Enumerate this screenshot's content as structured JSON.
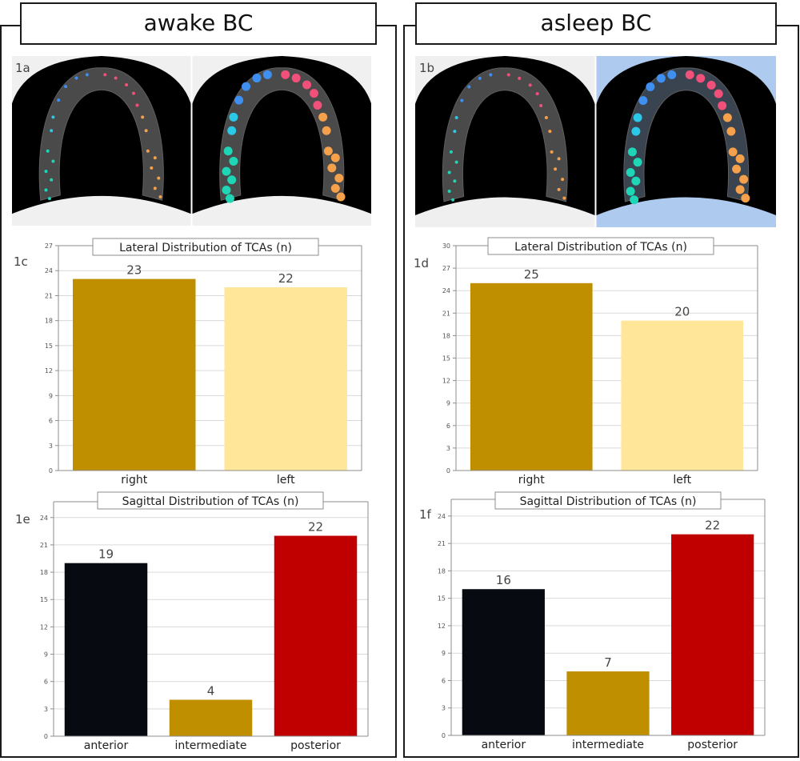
{
  "panels": [
    {
      "header": "awake BC",
      "photo_label": "1a",
      "photo_bg_right": "#f0f0f0",
      "photo_overlay_left": "#f0f0f0"
    },
    {
      "header": "asleep BC",
      "photo_label": "1b",
      "photo_bg_right": "#aecbef",
      "photo_overlay_left": "#efefef"
    }
  ],
  "colors": {
    "right_bar": "#bf8f00",
    "left_bar": "#ffe699",
    "anterior_bar": "#070a10",
    "intermediate_bar": "#bf8f00",
    "posterior_bar": "#c00000",
    "grid": "#d9d9d9",
    "axis": "#8c8c8c",
    "tcas": {
      "blue": "#3f8ff0",
      "pink": "#f0507a",
      "orange": "#f5a04a",
      "teal": "#1ed6b6",
      "cyan": "#2cc8e8"
    }
  },
  "chart_data": [
    {
      "id": "1c",
      "panel_label": "1c",
      "type": "bar",
      "title": "Lateral Distribution of TCAs (n)",
      "categories": [
        "right",
        "left"
      ],
      "values": [
        23,
        22
      ],
      "data_labels": [
        "23",
        "22"
      ],
      "bar_colors": [
        "#bf8f00",
        "#ffe699"
      ],
      "ylim": [
        0,
        27
      ],
      "yticks": [
        "0",
        "3",
        "6",
        "9",
        "12",
        "15",
        "18",
        "21",
        "24",
        "27"
      ],
      "grid": true,
      "xlabel": "",
      "ylabel": ""
    },
    {
      "id": "1d",
      "panel_label": "1d",
      "type": "bar",
      "title": "Lateral Distribution of TCAs (n)",
      "categories": [
        "right",
        "left"
      ],
      "values": [
        25,
        20
      ],
      "data_labels": [
        "25",
        "20"
      ],
      "bar_colors": [
        "#bf8f00",
        "#ffe699"
      ],
      "ylim": [
        0,
        30
      ],
      "yticks": [
        "0",
        "3",
        "6",
        "9",
        "12",
        "15",
        "18",
        "21",
        "24",
        "27",
        "30"
      ],
      "grid": true,
      "xlabel": "",
      "ylabel": ""
    },
    {
      "id": "1e",
      "panel_label": "1e",
      "type": "bar",
      "title": "Sagittal Distribution of TCAs (n)",
      "categories": [
        "anterior",
        "intermediate",
        "posterior"
      ],
      "values": [
        19,
        4,
        22
      ],
      "data_labels": [
        "19",
        "4",
        "22"
      ],
      "bar_colors": [
        "#070a10",
        "#bf8f00",
        "#c00000"
      ],
      "ylim": [
        0,
        26
      ],
      "yticks": [
        "0",
        "3",
        "6",
        "9",
        "12",
        "15",
        "18",
        "21",
        "24"
      ],
      "grid": true,
      "xlabel": "",
      "ylabel": ""
    },
    {
      "id": "1f",
      "panel_label": "1f",
      "type": "bar",
      "title": "Sagittal Distribution of TCAs (n)",
      "categories": [
        "anterior",
        "intermediate",
        "posterior"
      ],
      "values": [
        16,
        7,
        22
      ],
      "data_labels": [
        "16",
        "7",
        "22"
      ],
      "bar_colors": [
        "#070a10",
        "#bf8f00",
        "#c00000"
      ],
      "ylim": [
        0,
        26
      ],
      "yticks": [
        "0",
        "3",
        "6",
        "9",
        "12",
        "15",
        "18",
        "21",
        "24"
      ],
      "grid": true,
      "xlabel": "",
      "ylabel": ""
    }
  ]
}
